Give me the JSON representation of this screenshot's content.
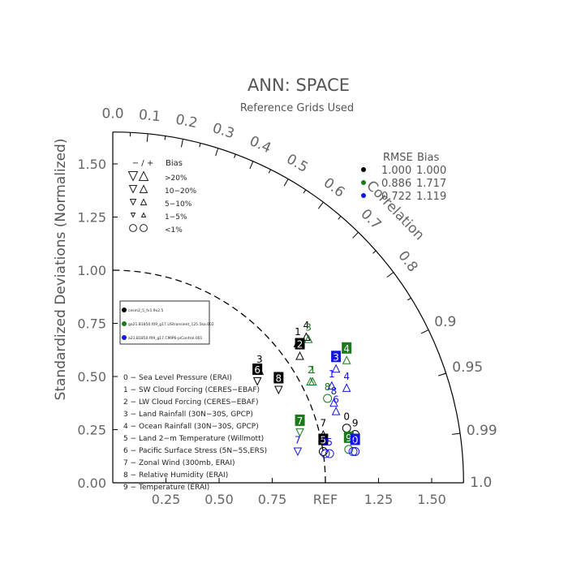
{
  "chart_data": {
    "type": "scatter",
    "subtype": "taylor-diagram",
    "title": "ANN: SPACE",
    "subtitle": "Reference Grids Used",
    "ylabel": "Standardized Deviations (Normalized)",
    "correlation_label": "Correlation",
    "ref_label": "REF",
    "std_range": [
      0,
      1.65
    ],
    "y_ticks": [
      "0.00",
      "0.25",
      "0.50",
      "0.75",
      "1.00",
      "1.25",
      "1.50"
    ],
    "x_ticks": [
      "0.25",
      "0.50",
      "0.75",
      "1.25",
      "1.50"
    ],
    "corr_ticks": [
      "0.0",
      "0.1",
      "0.2",
      "0.3",
      "0.4",
      "0.5",
      "0.6",
      "0.7",
      "0.8",
      "0.9",
      "0.95",
      "0.99",
      "1.0"
    ],
    "bias_legend": {
      "header": [
        "− / +",
        "Bias"
      ],
      "rows": [
        ">20%",
        "10−20%",
        "5−10%",
        "1−5%",
        "<1%"
      ]
    },
    "rmse_legend": {
      "header": [
        "RMSE",
        "Bias"
      ],
      "rows": [
        {
          "rmse": "1.000",
          "bias": "1.000",
          "color": "#000000"
        },
        {
          "rmse": "0.886",
          "bias": "1.717",
          "color": "#1a7a1a"
        },
        {
          "rmse": "0.722",
          "bias": "1.119",
          "color": "#1414e6"
        }
      ]
    },
    "case_legend": [
      {
        "label": "cesm2_5_fv1.9x2.5",
        "color": "#000000"
      },
      {
        "label": "ga21.B1850.f09_g17.LIStransient_125.5ka.002",
        "color": "#1a7a1a"
      },
      {
        "label": "a21.B1850.f09_g17.CMIP6-piControl.001",
        "color": "#1414e6"
      }
    ],
    "variables": [
      "0 − Sea Level Pressure (ERAI)",
      "1 − SW Cloud Forcing (CERES−EBAF)",
      "2 − LW Cloud Forcing (CERES−EBAF)",
      "3 − Land Rainfall (30N−30S, GPCP)",
      "4 − Ocean Rainfall (30N−30S, GPCP)",
      "5 − Land 2−m Temperature (Willmott)",
      "6 − Pacific Surface Stress (5N−5S,ERS)",
      "7 − Zonal Wind (300mb, ERAI)",
      "8 − Relative Humidity (ERAI)",
      "9 − Temperature (ERAI)"
    ],
    "series": [
      {
        "name": "cesm2_5_fv1.9x2.5",
        "color": "#000000",
        "points": [
          {
            "id": "0",
            "x": 1.1,
            "y": 0.28,
            "marker": "circle",
            "boxed": false
          },
          {
            "id": "1",
            "x": 0.87,
            "y": 0.68,
            "marker": "triangle-up",
            "boxed": false
          },
          {
            "id": "2",
            "x": 0.88,
            "y": 0.62,
            "marker": "triangle-up",
            "boxed": true
          },
          {
            "id": "3",
            "x": 0.69,
            "y": 0.55,
            "marker": "triangle-up",
            "boxed": false
          },
          {
            "id": "4",
            "x": 0.91,
            "y": 0.71,
            "marker": "triangle-up",
            "boxed": false
          },
          {
            "id": "5",
            "x": 0.99,
            "y": 0.17,
            "marker": "circle",
            "boxed": true
          },
          {
            "id": "6",
            "x": 0.68,
            "y": 0.5,
            "marker": "triangle-down",
            "boxed": true
          },
          {
            "id": "7",
            "x": 0.99,
            "y": 0.25,
            "marker": "triangle-up",
            "boxed": false
          },
          {
            "id": "8",
            "x": 0.78,
            "y": 0.46,
            "marker": "triangle-down",
            "boxed": true
          },
          {
            "id": "9",
            "x": 1.14,
            "y": 0.25,
            "marker": "circle",
            "boxed": false
          }
        ]
      },
      {
        "name": "ga21.B1850.f09_g17.LIStransient_125.5ka.002",
        "color": "#1a7a1a",
        "points": [
          {
            "id": "1",
            "x": 0.94,
            "y": 0.5,
            "marker": "triangle-up",
            "boxed": false
          },
          {
            "id": "2",
            "x": 0.93,
            "y": 0.5,
            "marker": "triangle-up",
            "boxed": false
          },
          {
            "id": "3",
            "x": 0.92,
            "y": 0.7,
            "marker": "triangle-up",
            "boxed": false
          },
          {
            "id": "4",
            "x": 1.1,
            "y": 0.6,
            "marker": "triangle-up",
            "boxed": true
          },
          {
            "id": "7",
            "x": 0.88,
            "y": 0.26,
            "marker": "triangle-down",
            "boxed": true
          },
          {
            "id": "8",
            "x": 1.01,
            "y": 0.42,
            "marker": "circle",
            "boxed": false
          },
          {
            "id": "9",
            "x": 1.11,
            "y": 0.18,
            "marker": "circle",
            "boxed": true
          }
        ]
      },
      {
        "name": "a21.B1850.f09_g17.CMIP6-piControl.001",
        "color": "#1414e6",
        "points": [
          {
            "id": "0",
            "x": 1.14,
            "y": 0.17,
            "marker": "circle",
            "boxed": true
          },
          {
            "id": "1",
            "x": 1.03,
            "y": 0.48,
            "marker": "triangle-up",
            "boxed": false
          },
          {
            "id": "2",
            "x": 1.0,
            "y": 0.16,
            "marker": "circle",
            "boxed": false
          },
          {
            "id": "3",
            "x": 1.05,
            "y": 0.56,
            "marker": "triangle-up",
            "boxed": true
          },
          {
            "id": "4",
            "x": 1.1,
            "y": 0.47,
            "marker": "triangle-up",
            "boxed": false
          },
          {
            "id": "5",
            "x": 1.02,
            "y": 0.16,
            "marker": "circle",
            "boxed": false
          },
          {
            "id": "6",
            "x": 1.05,
            "y": 0.36,
            "marker": "triangle-up",
            "boxed": false
          },
          {
            "id": "7",
            "x": 0.87,
            "y": 0.17,
            "marker": "triangle-down",
            "boxed": false
          },
          {
            "id": "8",
            "x": 1.04,
            "y": 0.4,
            "marker": "triangle-up",
            "boxed": false
          },
          {
            "id": "9",
            "x": 1.13,
            "y": 0.17,
            "marker": "circle",
            "boxed": false
          }
        ]
      }
    ]
  }
}
